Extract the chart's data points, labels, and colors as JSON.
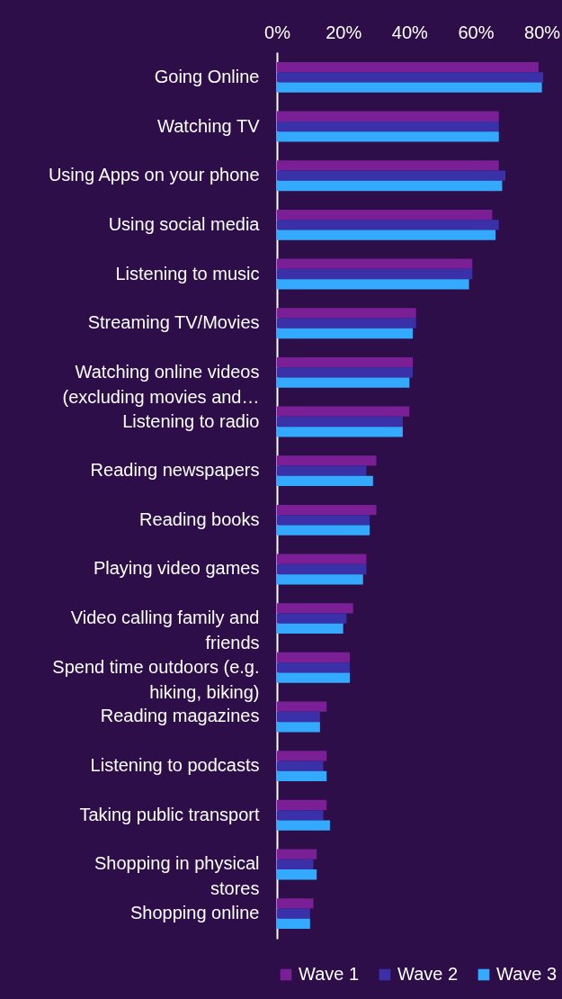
{
  "chart_data": {
    "type": "bar",
    "orientation": "horizontal",
    "categories": [
      "Going Online",
      "Watching TV",
      "Using Apps on your phone",
      "Using social media",
      "Listening to music",
      "Streaming TV/Movies",
      "Watching online videos (excluding movies and…",
      "Listening to radio",
      "Reading newspapers",
      "Reading books",
      "Playing video games",
      "Video calling family and friends",
      "Spend time outdoors (e.g. hiking, biking)",
      "Reading magazines",
      "Listening to podcasts",
      "Taking public transport",
      "Shopping in physical stores",
      "Shopping online"
    ],
    "series": [
      {
        "name": "Wave 1",
        "color": "#7a1f96",
        "values": [
          79,
          67,
          67,
          65,
          59,
          42,
          41,
          40,
          30,
          30,
          27,
          23,
          22,
          15,
          15,
          15,
          12,
          11
        ]
      },
      {
        "name": "Wave 2",
        "color": "#3a30a8",
        "values": [
          80.4,
          67,
          69,
          67,
          59,
          42,
          41,
          38,
          27,
          28,
          27,
          21,
          22,
          13,
          14,
          14,
          11,
          10
        ]
      },
      {
        "name": "Wave 3",
        "color": "#33aaff",
        "values": [
          80,
          67,
          68,
          66,
          58,
          41,
          40,
          38,
          29,
          28,
          26,
          20,
          22,
          13,
          15,
          16,
          12,
          10
        ]
      }
    ],
    "xlim": [
      0,
      82
    ],
    "xticks": [
      {
        "value": 0,
        "label": "0%"
      },
      {
        "value": 20,
        "label": "20%"
      },
      {
        "value": 40,
        "label": "40%"
      },
      {
        "value": 60,
        "label": "60%"
      },
      {
        "value": 80,
        "label": "80%"
      }
    ],
    "grid": false,
    "legend": "bottom"
  }
}
